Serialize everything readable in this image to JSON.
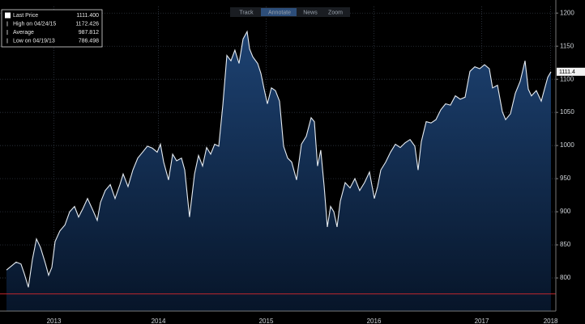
{
  "toolbar": [
    "Track",
    "Annotate",
    "News",
    "Zoom"
  ],
  "chart_data": {
    "type": "area",
    "stats": [
      {
        "label": "Last Price",
        "value": "1111.400"
      },
      {
        "label": "High on 04/24/15",
        "value": "1172.426"
      },
      {
        "label": "Average",
        "value": "987.812"
      },
      {
        "label": "Low on 04/19/13",
        "value": "786.498"
      }
    ],
    "x": [
      2013.06,
      2013.105,
      2013.15,
      2013.195,
      2013.226,
      2013.263,
      2013.301,
      2013.338,
      2013.376,
      2013.421,
      2013.451,
      2013.481,
      2013.511,
      2013.556,
      2013.602,
      2013.647,
      2013.692,
      2013.729,
      2013.767,
      2013.812,
      2013.857,
      2013.902,
      2013.932,
      2013.977,
      2014.023,
      2014.068,
      2014.113,
      2014.143,
      2014.188,
      2014.233,
      2014.278,
      2014.323,
      2014.368,
      2014.414,
      2014.459,
      2014.489,
      2014.519,
      2014.564,
      2014.602,
      2014.639,
      2014.684,
      2014.714,
      2014.759,
      2014.805,
      2014.842,
      2014.88,
      2014.917,
      2014.955,
      2014.992,
      2015.03,
      2015.068,
      2015.105,
      2015.143,
      2015.18,
      2015.218,
      2015.256,
      2015.293,
      2015.316,
      2015.346,
      2015.391,
      2015.421,
      2015.451,
      2015.481,
      2015.519,
      2015.556,
      2015.594,
      2015.632,
      2015.669,
      2015.707,
      2015.752,
      2015.797,
      2015.842,
      2015.887,
      2015.917,
      2015.947,
      2015.977,
      2016.008,
      2016.038,
      2016.068,
      2016.098,
      2016.128,
      2016.158,
      2016.203,
      2016.248,
      2016.293,
      2016.338,
      2016.383,
      2016.429,
      2016.474,
      2016.504,
      2016.534,
      2016.579,
      2016.624,
      2016.669,
      2016.714,
      2016.759,
      2016.805,
      2016.85,
      2016.88,
      2016.91,
      2016.955,
      2017.0,
      2017.045,
      2017.09,
      2017.135,
      2017.18,
      2017.226,
      2017.271,
      2017.316,
      2017.361,
      2017.406,
      2017.451,
      2017.496,
      2017.541,
      2017.571,
      2017.617,
      2017.662,
      2017.692,
      2017.737,
      2017.782,
      2017.827,
      2017.872,
      2017.902,
      2017.932,
      2017.977,
      2018.023,
      2018.053,
      2018.083,
      2018.113
    ],
    "series": [
      {
        "color": "#e6ecf2",
        "fill": "#15335c",
        "values": [
          812,
          818,
          824,
          821,
          806,
          786,
          828,
          859,
          846,
          822,
          804,
          816,
          855,
          871,
          880,
          900,
          908,
          892,
          904,
          920,
          904,
          887,
          914,
          932,
          941,
          920,
          941,
          957,
          938,
          963,
          981,
          990,
          999,
          996,
          990,
          1002,
          975,
          948,
          987,
          977,
          981,
          963,
          892,
          957,
          985,
          969,
          997,
          987,
          1002,
          999,
          1061,
          1136,
          1128,
          1144,
          1124,
          1161,
          1172,
          1146,
          1134,
          1124,
          1109,
          1085,
          1063,
          1087,
          1083,
          1067,
          999,
          981,
          975,
          948,
          1002,
          1014,
          1042,
          1036,
          969,
          993,
          938,
          877,
          908,
          900,
          877,
          916,
          944,
          936,
          950,
          932,
          944,
          960,
          920,
          938,
          963,
          975,
          990,
          1002,
          997,
          1004,
          1009,
          999,
          963,
          1006,
          1036,
          1034,
          1039,
          1054,
          1063,
          1061,
          1075,
          1070,
          1073,
          1112,
          1119,
          1116,
          1122,
          1116,
          1087,
          1091,
          1051,
          1039,
          1048,
          1079,
          1097,
          1128,
          1085,
          1075,
          1083,
          1067,
          1085,
          1103,
          1111.4
        ]
      }
    ],
    "hline": {
      "value": 776,
      "color": "#c0272d"
    },
    "xlim": [
      2013,
      2018.158
    ],
    "xticks": [
      {
        "value": 2013.5,
        "label": "2013"
      },
      {
        "value": 2014.47,
        "label": "2014"
      },
      {
        "value": 2015.47,
        "label": "2015"
      },
      {
        "value": 2016.47,
        "label": "2016"
      },
      {
        "value": 2017.47,
        "label": "2017"
      },
      {
        "value": 2018.11,
        "label": "2018"
      }
    ],
    "ylim": [
      750,
      1210
    ],
    "yticks": [
      800,
      850,
      900,
      950,
      1000,
      1050,
      1100,
      1150,
      1200
    ],
    "grid": true
  }
}
